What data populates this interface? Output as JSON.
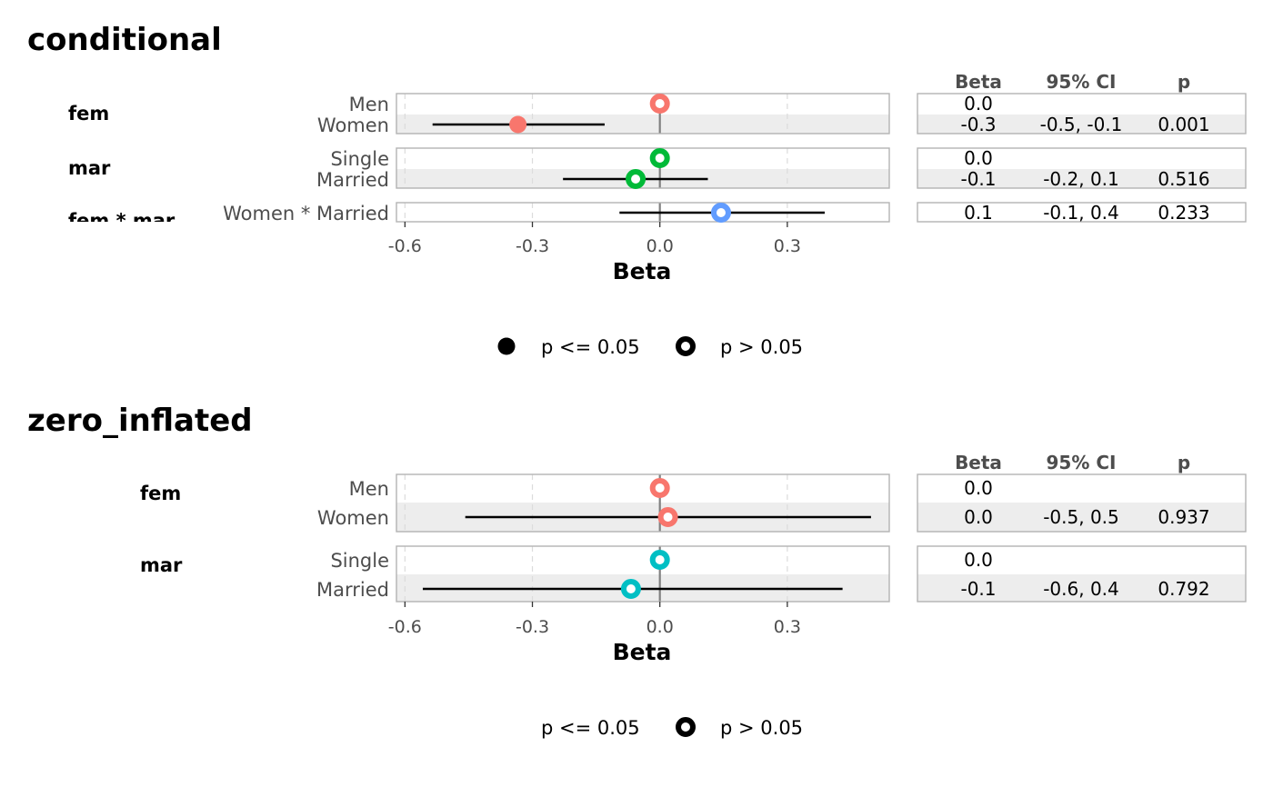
{
  "chart_data": [
    {
      "type": "forest",
      "title": "conditional",
      "xlabel": "Beta",
      "xlim": [
        -0.62,
        0.54
      ],
      "x_ticks": [
        -0.6,
        -0.3,
        0.0,
        0.3
      ],
      "x_tick_labels": [
        "-0.6",
        "-0.3",
        "0.0",
        "0.3"
      ],
      "table_headers": [
        "Beta",
        "95% CI",
        "p"
      ],
      "groups": [
        {
          "label": "fem",
          "color": "#F8766D",
          "rows": [
            {
              "term": "Men",
              "beta": 0.0,
              "ci_low": null,
              "ci_high": null,
              "significant": false,
              "beta_text": "0.0",
              "ci_text": "",
              "p_text": ""
            },
            {
              "term": "Women",
              "beta": -0.334,
              "ci_low": -0.535,
              "ci_high": -0.13,
              "significant": true,
              "beta_text": "-0.3",
              "ci_text": "-0.5, -0.1",
              "p_text": "0.001"
            }
          ]
        },
        {
          "label": "mar",
          "color": "#00BA38",
          "rows": [
            {
              "term": "Single",
              "beta": 0.0,
              "ci_low": null,
              "ci_high": null,
              "significant": false,
              "beta_text": "0.0",
              "ci_text": "",
              "p_text": ""
            },
            {
              "term": "Married",
              "beta": -0.057,
              "ci_low": -0.228,
              "ci_high": 0.113,
              "significant": false,
              "beta_text": "-0.1",
              "ci_text": "-0.2, 0.1",
              "p_text": "0.516"
            }
          ]
        },
        {
          "label": "fem * mar",
          "color": "#619CFF",
          "rows": [
            {
              "term": "Women * Married",
              "beta": 0.144,
              "ci_low": -0.095,
              "ci_high": 0.388,
              "significant": false,
              "beta_text": "0.1",
              "ci_text": "-0.1, 0.4",
              "p_text": "0.233"
            }
          ]
        }
      ],
      "legend": [
        {
          "label": "p <= 0.05",
          "shape": "filled"
        },
        {
          "label": "p > 0.05",
          "shape": "hollow"
        }
      ]
    },
    {
      "type": "forest",
      "title": "zero_inflated",
      "xlabel": "Beta",
      "xlim": [
        -0.62,
        0.54
      ],
      "x_ticks": [
        -0.6,
        -0.3,
        0.0,
        0.3
      ],
      "x_tick_labels": [
        "-0.6",
        "-0.3",
        "0.0",
        "0.3"
      ],
      "table_headers": [
        "Beta",
        "95% CI",
        "p"
      ],
      "groups": [
        {
          "label": "fem",
          "color": "#F8766D",
          "rows": [
            {
              "term": "Men",
              "beta": 0.0,
              "ci_low": null,
              "ci_high": null,
              "significant": false,
              "beta_text": "0.0",
              "ci_text": "",
              "p_text": ""
            },
            {
              "term": "Women",
              "beta": 0.019,
              "ci_low": -0.458,
              "ci_high": 0.497,
              "significant": false,
              "beta_text": "0.0",
              "ci_text": "-0.5, 0.5",
              "p_text": "0.937"
            }
          ]
        },
        {
          "label": "mar",
          "color": "#00BFC4",
          "rows": [
            {
              "term": "Single",
              "beta": 0.0,
              "ci_low": null,
              "ci_high": null,
              "significant": false,
              "beta_text": "0.0",
              "ci_text": "",
              "p_text": ""
            },
            {
              "term": "Married",
              "beta": -0.068,
              "ci_low": -0.558,
              "ci_high": 0.43,
              "significant": false,
              "beta_text": "-0.1",
              "ci_text": "-0.6, 0.4",
              "p_text": "0.792"
            }
          ]
        }
      ],
      "legend": [
        {
          "label": "p <= 0.05",
          "shape": "none"
        },
        {
          "label": "p > 0.05",
          "shape": "hollow"
        }
      ]
    }
  ]
}
